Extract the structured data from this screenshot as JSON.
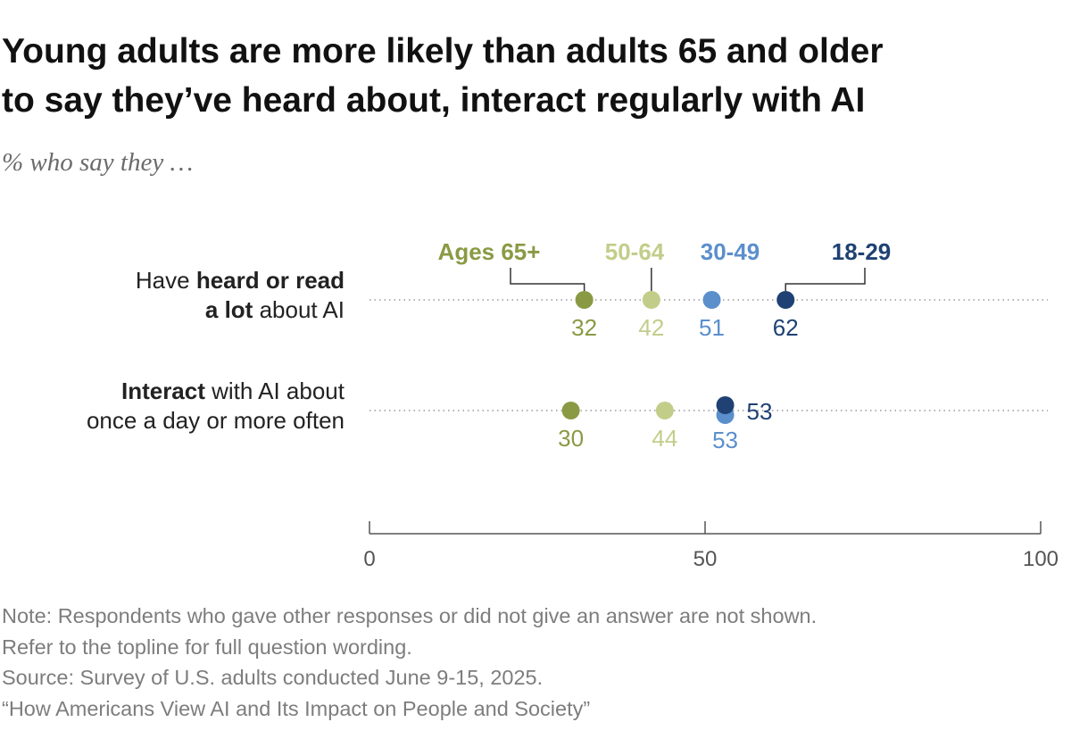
{
  "header": {
    "title_line1": "Young adults are more likely than adults 65 and older",
    "title_line2": "to say they’ve heard about, interact regularly with AI",
    "subtitle": "% who say they …"
  },
  "chart_data": {
    "type": "dot",
    "xlim": [
      0,
      100
    ],
    "xticks": [
      0,
      50,
      100
    ],
    "xtick_labels": [
      "0",
      "50",
      "100"
    ],
    "legend": [
      {
        "key": "65+",
        "label": "Ages 65+",
        "color": "#8a9a44"
      },
      {
        "key": "50-64",
        "label": "50-64",
        "color": "#c3cd8a"
      },
      {
        "key": "30-49",
        "label": "30-49",
        "color": "#5b8fcc"
      },
      {
        "key": "18-29",
        "label": "18-29",
        "color": "#1f4173"
      }
    ],
    "rows": [
      {
        "label_parts": [
          [
            {
              "t": "Have ",
              "b": false
            },
            {
              "t": "heard or read",
              "b": true
            }
          ],
          [
            {
              "t": "a lot",
              "b": true
            },
            {
              "t": " about AI",
              "b": false
            }
          ]
        ],
        "values": {
          "65+": 32,
          "50-64": 42,
          "30-49": 51,
          "18-29": 62
        },
        "value_labels": {
          "65+": "32",
          "50-64": "42",
          "30-49": "51",
          "18-29": "62"
        }
      },
      {
        "label_parts": [
          [
            {
              "t": "Interact",
              "b": true
            },
            {
              "t": " with AI about",
              "b": false
            }
          ],
          [
            {
              "t": "once a day or more often",
              "b": false
            }
          ]
        ],
        "values": {
          "65+": 30,
          "50-64": 44,
          "30-49": 53,
          "18-29": 53
        },
        "value_labels": {
          "65+": "30",
          "50-64": "44",
          "30-49": "53",
          "18-29": "53"
        }
      }
    ]
  },
  "notes": {
    "note1": "Note: Respondents who gave other responses or did not give an answer are not shown.",
    "note2": "Refer to the topline for full question wording.",
    "source": "Source: Survey of U.S. adults conducted June 9-15, 2025.",
    "report": "“How Americans View AI and Its Impact on People and Society”"
  }
}
